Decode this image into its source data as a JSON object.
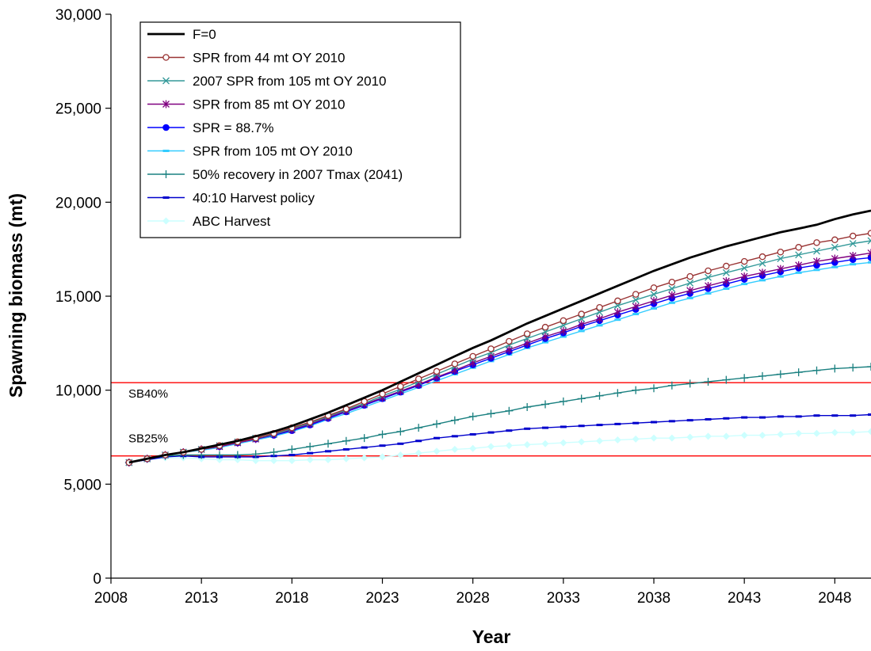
{
  "chart_data": {
    "type": "line",
    "xlabel": "Year",
    "ylabel": "Spawning biomass (mt)",
    "xlim": [
      2008,
      2050
    ],
    "ylim": [
      0,
      30000
    ],
    "x_ticks": [
      2008,
      2013,
      2018,
      2023,
      2028,
      2033,
      2038,
      2043,
      2048
    ],
    "x_tick_labels": [
      "2008",
      "2013",
      "2018",
      "2023",
      "2028",
      "2033",
      "2038",
      "2043",
      "2048"
    ],
    "y_ticks": [
      0,
      5000,
      10000,
      15000,
      20000,
      25000,
      30000
    ],
    "y_tick_labels": [
      "0",
      "5,000",
      "10,000",
      "15,000",
      "20,000",
      "25,000",
      "30,000"
    ],
    "grid": false,
    "legend_position": "top-left",
    "reference_lines": [
      {
        "name": "SB40%",
        "label": "SB40%",
        "y": 10400,
        "color": "#ff0000"
      },
      {
        "name": "SB25%",
        "label": "SB25%",
        "y": 6500,
        "color": "#ff0000"
      }
    ],
    "x": [
      2009,
      2010,
      2011,
      2012,
      2013,
      2014,
      2015,
      2016,
      2017,
      2018,
      2019,
      2020,
      2021,
      2022,
      2023,
      2024,
      2025,
      2026,
      2027,
      2028,
      2029,
      2030,
      2031,
      2032,
      2033,
      2034,
      2035,
      2036,
      2037,
      2038,
      2039,
      2040,
      2041,
      2042,
      2043,
      2044,
      2045,
      2046,
      2047,
      2048,
      2049,
      2050
    ],
    "series": [
      {
        "name": "F=0",
        "color": "#000000",
        "marker": "none",
        "values": [
          6150,
          6350,
          6550,
          6700,
          6900,
          7100,
          7300,
          7550,
          7800,
          8100,
          8450,
          8800,
          9200,
          9600,
          10000,
          10450,
          10900,
          11350,
          11800,
          12250,
          12650,
          13100,
          13550,
          13950,
          14350,
          14750,
          15150,
          15550,
          15950,
          16350,
          16700,
          17050,
          17350,
          17650,
          17900,
          18150,
          18400,
          18600,
          18800,
          19100,
          19350,
          19550
        ]
      },
      {
        "name": "SPR from 44 mt OY 2010",
        "color": "#993333",
        "marker": "circle",
        "values": [
          6150,
          6350,
          6550,
          6700,
          6850,
          7050,
          7250,
          7450,
          7700,
          8000,
          8300,
          8650,
          9000,
          9400,
          9800,
          10200,
          10600,
          11000,
          11400,
          11800,
          12200,
          12600,
          13000,
          13350,
          13700,
          14050,
          14400,
          14750,
          15100,
          15450,
          15750,
          16050,
          16350,
          16600,
          16850,
          17100,
          17350,
          17600,
          17850,
          18000,
          18200,
          18350
        ]
      },
      {
        "name": "2007 SPR from 105 mt OY 2010",
        "color": "#339999",
        "marker": "x",
        "values": [
          6150,
          6350,
          6550,
          6700,
          6850,
          7050,
          7250,
          7450,
          7650,
          7950,
          8250,
          8600,
          8950,
          9300,
          9700,
          10050,
          10450,
          10850,
          11250,
          11650,
          12000,
          12400,
          12750,
          13100,
          13450,
          13800,
          14150,
          14500,
          14800,
          15100,
          15400,
          15700,
          16000,
          16250,
          16500,
          16750,
          17000,
          17200,
          17400,
          17600,
          17800,
          17950
        ]
      },
      {
        "name": "SPR from 85 mt OY 2010",
        "color": "#800080",
        "marker": "star",
        "values": [
          6150,
          6350,
          6550,
          6700,
          6850,
          7000,
          7200,
          7400,
          7650,
          7900,
          8200,
          8550,
          8900,
          9250,
          9600,
          9950,
          10300,
          10700,
          11050,
          11450,
          11800,
          12150,
          12500,
          12850,
          13150,
          13500,
          13800,
          14150,
          14450,
          14750,
          15050,
          15300,
          15550,
          15800,
          16050,
          16250,
          16450,
          16650,
          16850,
          17000,
          17150,
          17300
        ]
      },
      {
        "name": "SPR = 88.7%",
        "color": "#0000ff",
        "marker": "dot",
        "values": [
          6150,
          6350,
          6550,
          6700,
          6850,
          7000,
          7200,
          7400,
          7600,
          7850,
          8150,
          8500,
          8850,
          9200,
          9550,
          9900,
          10250,
          10650,
          11000,
          11350,
          11700,
          12050,
          12400,
          12750,
          13050,
          13400,
          13700,
          14000,
          14300,
          14600,
          14900,
          15150,
          15400,
          15650,
          15900,
          16100,
          16300,
          16500,
          16650,
          16800,
          16950,
          17050
        ]
      },
      {
        "name": "SPR from 105 mt OY 2010",
        "color": "#33ccff",
        "marker": "dash",
        "values": [
          6150,
          6350,
          6550,
          6700,
          6800,
          6950,
          7150,
          7350,
          7550,
          7800,
          8100,
          8450,
          8750,
          9100,
          9450,
          9800,
          10150,
          10500,
          10850,
          11200,
          11550,
          11900,
          12250,
          12550,
          12850,
          13150,
          13450,
          13750,
          14050,
          14350,
          14650,
          14900,
          15150,
          15400,
          15650,
          15850,
          16050,
          16250,
          16400,
          16550,
          16700,
          16800
        ]
      },
      {
        "name": "50% recovery in 2007 Tmax (2041)",
        "color": "#1a8080",
        "marker": "plus",
        "values": [
          6150,
          6350,
          6500,
          6550,
          6550,
          6550,
          6550,
          6600,
          6700,
          6850,
          7000,
          7150,
          7300,
          7450,
          7650,
          7800,
          8000,
          8200,
          8400,
          8600,
          8750,
          8900,
          9100,
          9250,
          9400,
          9550,
          9700,
          9850,
          10000,
          10100,
          10250,
          10350,
          10450,
          10550,
          10650,
          10750,
          10850,
          10950,
          11050,
          11150,
          11200,
          11250
        ]
      },
      {
        "name": "40:10 Harvest policy",
        "color": "#0000cc",
        "marker": "dash",
        "values": [
          6150,
          6300,
          6450,
          6500,
          6450,
          6450,
          6450,
          6450,
          6500,
          6550,
          6650,
          6750,
          6850,
          6950,
          7050,
          7150,
          7300,
          7450,
          7550,
          7650,
          7750,
          7850,
          7950,
          8000,
          8050,
          8100,
          8150,
          8200,
          8250,
          8300,
          8350,
          8400,
          8450,
          8500,
          8550,
          8550,
          8600,
          8600,
          8650,
          8650,
          8650,
          8700
        ]
      },
      {
        "name": "ABC Harvest",
        "color": "#ccffff",
        "marker": "diamond",
        "values": [
          6150,
          6300,
          6400,
          6400,
          6350,
          6300,
          6300,
          6250,
          6250,
          6250,
          6300,
          6300,
          6350,
          6400,
          6450,
          6550,
          6650,
          6750,
          6850,
          6900,
          7000,
          7050,
          7100,
          7150,
          7200,
          7250,
          7300,
          7350,
          7400,
          7450,
          7450,
          7500,
          7550,
          7550,
          7600,
          7600,
          7650,
          7700,
          7700,
          7750,
          7750,
          7800
        ]
      }
    ]
  }
}
